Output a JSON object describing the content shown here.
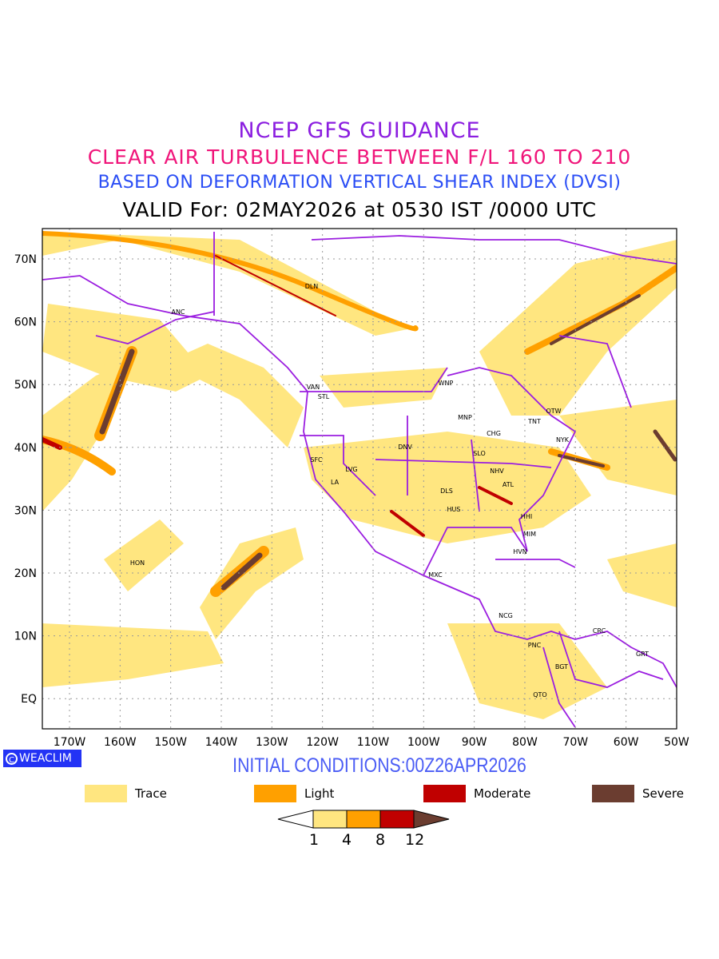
{
  "header": {
    "line1": "NCEP GFS GUIDANCE",
    "line2": "CLEAR AIR TURBULENCE BETWEEN F/L 160 TO 210",
    "line3": "BASED ON DEFORMATION VERTICAL SHEAR INDEX (DVSI)",
    "line4": "VALID For: 02MAY2026 at 0530 IST /0000 UTC"
  },
  "map": {
    "lat_labels": [
      "70N",
      "60N",
      "50N",
      "40N",
      "30N",
      "20N",
      "10N",
      "EQ"
    ],
    "lon_labels": [
      "170W",
      "160W",
      "150W",
      "140W",
      "130W",
      "120W",
      "110W",
      "100W",
      "90W",
      "80W",
      "70W",
      "60W",
      "50W"
    ],
    "stations": [
      "DLN",
      "ANC",
      "VAN",
      "STL",
      "WNP",
      "MNP",
      "TNT",
      "OTW",
      "CHG",
      "NYK",
      "DNV",
      "SLO",
      "SFC",
      "LVG",
      "NHV",
      "LA",
      "DLS",
      "ATL",
      "HHI",
      "HUS",
      "MIM",
      "HVN",
      "MXC",
      "HON",
      "NCG",
      "CRC",
      "PNC",
      "GRT",
      "BGT",
      "QTO"
    ],
    "colors": {
      "boundary": "#9b1ee0",
      "trace": "#ffe680",
      "light": "#ffa000",
      "moderate": "#c00000",
      "severe": "#6b3d30"
    }
  },
  "logo": {
    "text": "WEACLIM"
  },
  "footer": {
    "initial_conditions": "INITIAL CONDITIONS:00Z26APR2026"
  },
  "legend": [
    {
      "label": "Trace",
      "color": "#ffe680"
    },
    {
      "label": "Light",
      "color": "#ffa000"
    },
    {
      "label": "Moderate",
      "color": "#c00000"
    },
    {
      "label": "Severe",
      "color": "#6b3d30"
    }
  ],
  "colorbar": {
    "ticks": [
      "1",
      "4",
      "8",
      "12"
    ]
  }
}
